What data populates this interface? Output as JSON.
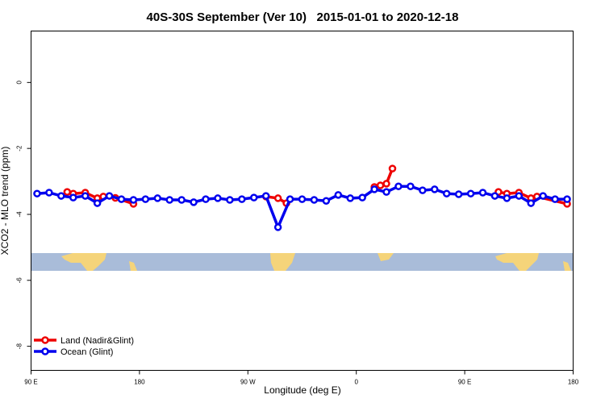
{
  "chart_data": {
    "type": "line",
    "title": "40S-30S September (Ver 10)   2015-01-01 to 2020-12-18",
    "x_label": "Longitude (deg E)",
    "y_label": "XCO2 - MLO trend (ppm)",
    "xlim": [
      90,
      540
    ],
    "ylim": [
      -8.73,
      1.56
    ],
    "xticks": [
      {
        "value": 90,
        "label": "90 E"
      },
      {
        "value": 180,
        "label": "180"
      },
      {
        "value": 270,
        "label": "90 W"
      },
      {
        "value": 360,
        "label": "0"
      },
      {
        "value": 450,
        "label": "90 E"
      },
      {
        "value": 540,
        "label": "180"
      }
    ],
    "yticks": [
      0,
      -2,
      -4,
      -6,
      -8
    ],
    "legend": "bottom-left",
    "series": [
      {
        "name": "Land (Nadir&Glint)",
        "color": "#ee0000",
        "x": [
          120,
          125,
          135,
          145,
          150,
          160,
          175,
          230,
          285,
          295,
          302,
          340,
          375,
          380,
          385,
          390,
          430,
          478,
          485,
          495,
          505,
          510,
          535
        ],
        "values": [
          -3.32,
          -3.37,
          -3.34,
          -3.51,
          -3.46,
          -3.5,
          -3.68,
          null,
          -3.46,
          -3.51,
          -3.66,
          null,
          -3.17,
          -3.12,
          -3.07,
          -2.61,
          null,
          -3.32,
          -3.37,
          -3.34,
          -3.51,
          -3.46,
          -3.68
        ]
      },
      {
        "name": "Ocean (Glint)",
        "color": "#0000ee",
        "x": [
          95,
          105,
          115,
          125,
          135,
          145,
          155,
          165,
          175,
          185,
          195,
          205,
          215,
          225,
          235,
          245,
          255,
          265,
          275,
          285,
          295,
          305,
          315,
          325,
          335,
          345,
          355,
          365,
          375,
          385,
          395,
          405,
          415,
          425,
          435,
          445,
          455,
          465,
          475,
          485,
          495,
          505,
          515,
          525,
          535
        ],
        "values": [
          -3.37,
          -3.34,
          -3.44,
          -3.49,
          -3.44,
          -3.66,
          -3.44,
          -3.54,
          -3.56,
          -3.54,
          -3.51,
          -3.56,
          -3.56,
          -3.63,
          -3.54,
          -3.51,
          -3.56,
          -3.54,
          -3.49,
          -3.44,
          -4.39,
          -3.54,
          -3.54,
          -3.56,
          -3.59,
          -3.41,
          -3.51,
          -3.49,
          -3.24,
          -3.32,
          -3.15,
          -3.15,
          -3.27,
          -3.24,
          -3.37,
          -3.39,
          -3.37,
          -3.34,
          -3.44,
          -3.51,
          -3.44,
          -3.66,
          -3.44,
          -3.54,
          -3.54
        ]
      }
    ]
  }
}
